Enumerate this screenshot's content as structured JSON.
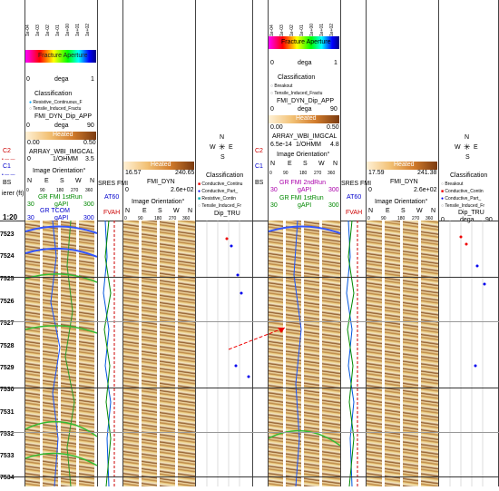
{
  "scale_label": "1:20",
  "depth_unit_label": "ierer (ft)",
  "depths": [
    "7523",
    "7524",
    "7525",
    "7526",
    "7527",
    "7528",
    "7529",
    "7530",
    "7531",
    "7532",
    "7533",
    "7534"
  ],
  "left_tracks": {
    "aperture_ticks": [
      "1e-04",
      "1e-03",
      "1e-02",
      "1e-01",
      "1e+00",
      "1e+01",
      "1e+02"
    ],
    "aperture_title": "Fracture Aperture",
    "aperture_scale": [
      "0",
      "dega",
      "1"
    ],
    "classification_title": "Classification",
    "classification_items": [
      "Resistive_Continuous_F",
      "Tensile_Induced_Fractu",
      "FMI_DYN_Dip_APP"
    ],
    "dip_scale": [
      "0",
      "dega",
      "90"
    ],
    "heated_label": "Heated",
    "heated_range": [
      "0.00",
      "0.50"
    ],
    "calipers": [
      "C2",
      "C1",
      "BS"
    ],
    "array_label": "ARRAY_WBI_IMGCAL",
    "array_scale": [
      "0",
      "1/OHMM",
      "3.5"
    ],
    "image_orientation": "Image Orientation°",
    "nesw": [
      "N",
      "E",
      "S",
      "W",
      "N"
    ],
    "degrees": [
      "0",
      "90",
      "180",
      "270",
      "360"
    ],
    "gr_run_label": "GR FMI 1stRun",
    "gapi_range": [
      "30",
      "gAPI",
      "300"
    ],
    "gr_tcom_label": "GR TCOM",
    "gapi_range2": [
      "30",
      "gAPI",
      "300"
    ],
    "sres_label": "SRES FMI",
    "at60_label": "AT60",
    "fvah_label": "FVAH"
  },
  "middle_tracks": {
    "heated_label": "Heated",
    "heated_range": [
      "16.57",
      "240.65"
    ],
    "fmi_dyn_label": "FMI_DYN",
    "fmi_scale": [
      "0",
      "2.6e+02"
    ],
    "image_orientation": "Image Orientation°",
    "nesw": [
      "N",
      "E",
      "S",
      "W",
      "N"
    ],
    "degrees": [
      "0",
      "90",
      "180",
      "270",
      "360"
    ],
    "compass": [
      "N",
      "W",
      "E",
      "S"
    ],
    "classification_title": "Classification",
    "classification_items": [
      "Conductive_Continu",
      "Conductive_Part_",
      "Resistive_Contin",
      "Tensile_Induced_Fr"
    ],
    "dip_label": "Dip_TRU"
  },
  "right_tracks": {
    "aperture_ticks": [
      "1e-04",
      "1e-03",
      "1e-02",
      "1e-01",
      "1e+00",
      "1e+01",
      "1e+02"
    ],
    "aperture_title": "Fracture Aperture",
    "aperture_scale": [
      "0",
      "dega",
      "1"
    ],
    "classification_title": "Classification",
    "classification_items": [
      "Breakout",
      "Tensile_Induced_Fractu",
      "FMI_DYN_Dip_APP"
    ],
    "dip_scale": [
      "0",
      "dega",
      "90"
    ],
    "heated_label": "Heated",
    "heated_range": [
      "0.00",
      "0.50"
    ],
    "array_label": "ARRAY_WBI_IMGCAL",
    "array_scale": [
      "6.5e-14",
      "1/OHMM",
      "4.8"
    ],
    "calipers": [
      "C2",
      "C1",
      "BS"
    ],
    "image_orientation": "Image Orientation°",
    "nesw": [
      "N",
      "E",
      "S",
      "W",
      "N"
    ],
    "degrees": [
      "0",
      "90",
      "180",
      "270",
      "360"
    ],
    "gr_run_label": "GR FMI 2ndRun",
    "gapi_range": [
      "30",
      "gAPI",
      "300"
    ],
    "gr_run_label2": "GR FMI 1stRun",
    "gapi_range2": [
      "30",
      "gAPI",
      "300"
    ],
    "sres_label": "SRES FMI",
    "at60_label": "AT60",
    "fvah_label": "FVAH",
    "heated_label2": "Heated",
    "heated_range2": [
      "17.59",
      "241.38"
    ],
    "fmi_dyn_label": "FMI_DYN",
    "fmi_scale": [
      "0",
      "2.6e+02"
    ],
    "image_orientation2": "Image Orientation°",
    "compass": [
      "N",
      "W",
      "E",
      "S"
    ],
    "classification_title2": "Classification",
    "classification_items2": [
      "Breakout",
      "Conductive_Contin",
      "Conductive_Part_",
      "Tensile_Induced_Fr"
    ],
    "dip_label": "Dip_TRU",
    "dip_scale2": [
      "0",
      "dega",
      "90"
    ]
  }
}
